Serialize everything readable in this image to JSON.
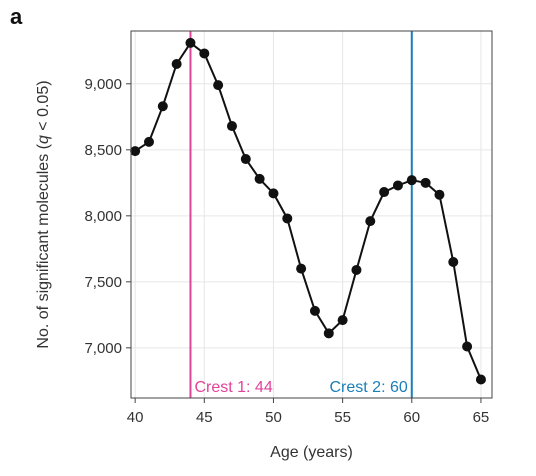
{
  "panel_label": "a",
  "chart_data": {
    "type": "line",
    "xlabel": "Age (years)",
    "ylabel_parts": {
      "before": "No. of significant molecules (",
      "italic": "q",
      "after": " < 0.05)"
    },
    "xlim": [
      39.7,
      65.8
    ],
    "ylim": [
      6620,
      9400
    ],
    "x_ticks": [
      40,
      45,
      50,
      55,
      60,
      65
    ],
    "x_tick_labels": [
      "40",
      "45",
      "50",
      "55",
      "60",
      "65"
    ],
    "y_ticks": [
      7000,
      7500,
      8000,
      8500,
      9000
    ],
    "y_tick_labels": [
      "7,000",
      "7,500",
      "8,000",
      "8,500",
      "9,000"
    ],
    "grid": true,
    "series": [
      {
        "x": [
          40,
          41,
          42,
          43,
          44,
          45,
          46,
          47,
          48,
          49,
          50,
          51,
          52,
          53,
          54,
          55,
          56,
          57,
          58,
          59,
          60,
          61,
          62,
          63,
          64,
          65
        ],
        "y": [
          8490,
          8560,
          8830,
          9150,
          9310,
          9230,
          8990,
          8680,
          8430,
          8280,
          8170,
          7980,
          7600,
          7280,
          7110,
          7210,
          7590,
          7960,
          8180,
          8230,
          8270,
          8250,
          8160,
          7650,
          7010,
          6760
        ],
        "color": "#111111"
      }
    ],
    "vlines": [
      {
        "x": 44,
        "label": "Crest 1: 44",
        "color": "#e0439a"
      },
      {
        "x": 60,
        "label": "Crest 2: 60",
        "color": "#1a7fb8"
      }
    ]
  }
}
